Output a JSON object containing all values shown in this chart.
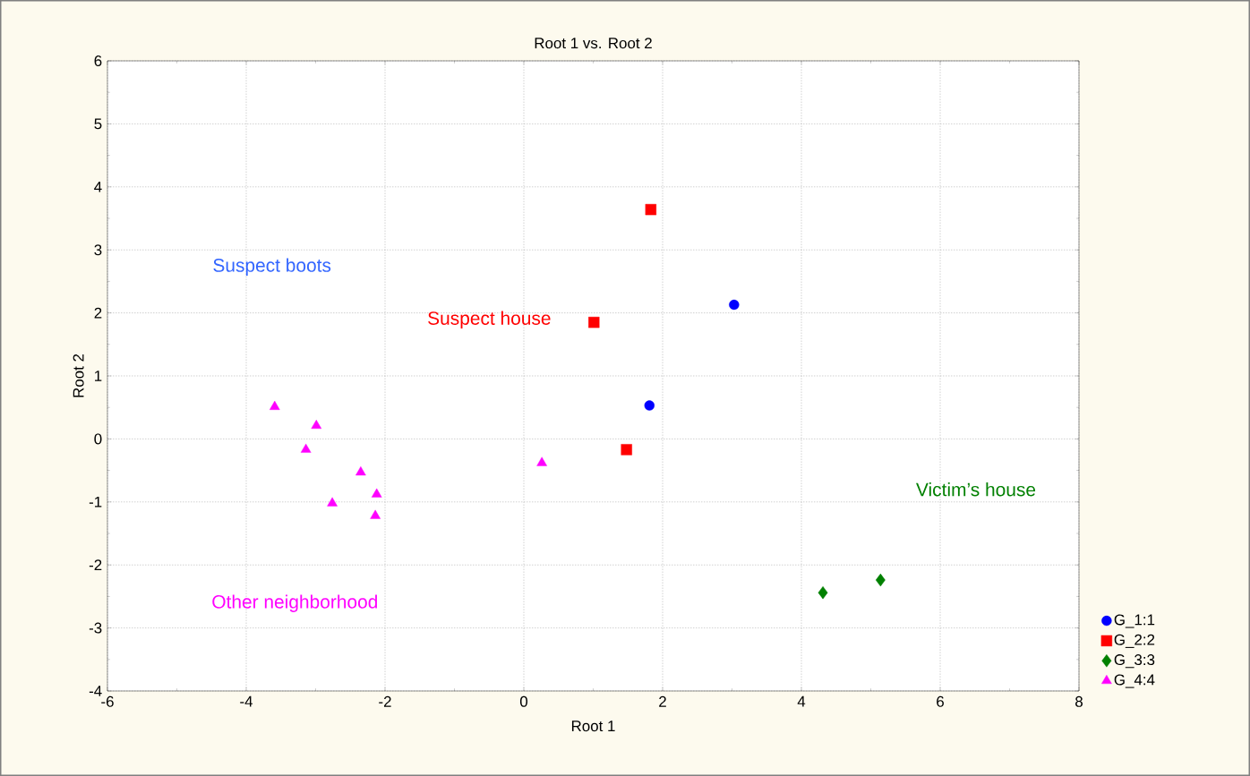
{
  "chart_data": {
    "type": "scatter",
    "title": "Root 1 vs. Root 2",
    "xlabel": "Root 1",
    "ylabel": "Root 2",
    "xlim": [
      -6,
      8
    ],
    "xticks": [
      -6,
      -4,
      -2,
      0,
      2,
      4,
      6,
      8
    ],
    "ylim": [
      -4,
      6
    ],
    "yticks": [
      -4,
      -3,
      -2,
      -1,
      0,
      1,
      2,
      3,
      4,
      5,
      6
    ],
    "grid": true,
    "legend": "bottom right",
    "series": [
      {
        "name": "G_1:1",
        "color": "#0000ff",
        "marker": "circle",
        "x": [
          3.03,
          1.81
        ],
        "values": [
          2.13,
          0.53
        ]
      },
      {
        "name": "G_2:2",
        "color": "#ff0000",
        "marker": "square",
        "x": [
          1.83,
          1.01,
          1.48
        ],
        "values": [
          3.64,
          1.85,
          -0.17
        ]
      },
      {
        "name": "G_3:3",
        "color": "#008000",
        "marker": "diamond",
        "x": [
          4.31,
          5.14
        ],
        "values": [
          -2.44,
          -2.24
        ]
      },
      {
        "name": "G_4:4",
        "color": "#ff00ff",
        "marker": "triangle",
        "x": [
          -3.59,
          -2.99,
          -3.14,
          -2.35,
          -2.76,
          -2.12,
          -2.14,
          0.26
        ],
        "values": [
          0.51,
          0.21,
          -0.17,
          -0.53,
          -1.02,
          -0.88,
          -1.22,
          -0.38
        ]
      }
    ],
    "annotations": [
      "Suspect boots",
      "Suspect house",
      "Victim’s house",
      "Other neighborhood"
    ]
  }
}
